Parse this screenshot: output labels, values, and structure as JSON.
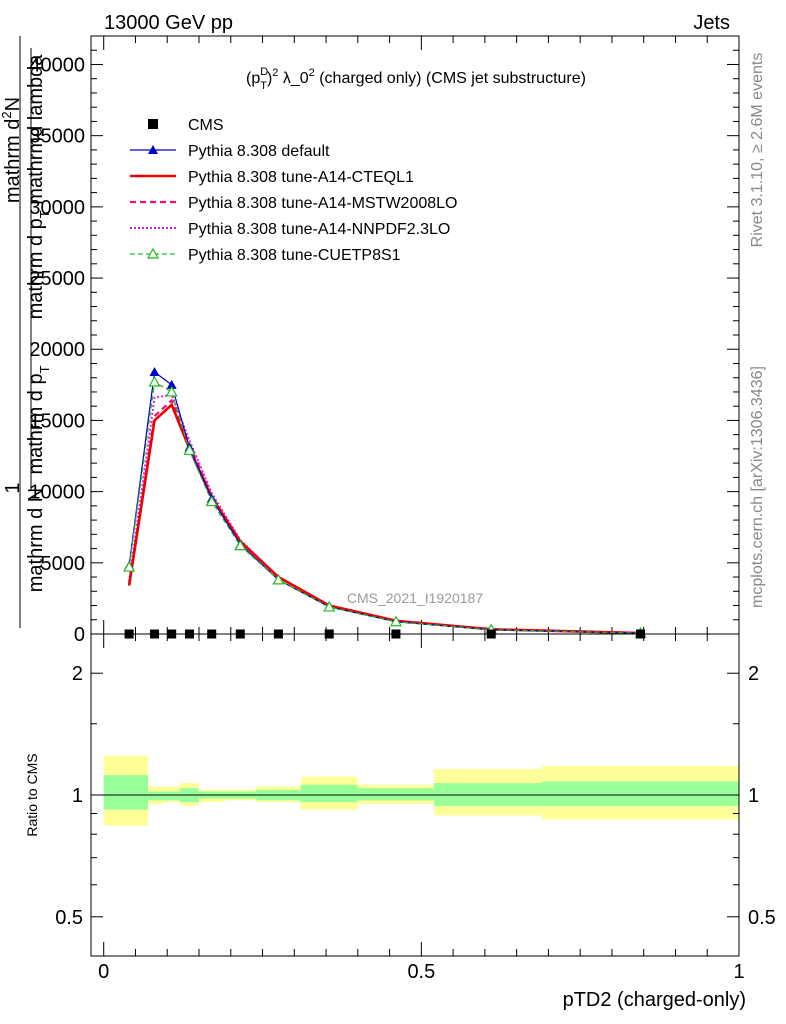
{
  "header": {
    "energy_label": "13000 GeV pp",
    "process_label": "Jets"
  },
  "side_text": {
    "rivet": "Rivet 3.1.10, ≥ 2.6M events",
    "mcplots": "mcplots.cern.ch [arXiv:1306.3436]"
  },
  "chart_data": [
    {
      "type": "line",
      "title_parts": {
        "open": "(p",
        "sup": "D",
        "sub": "T",
        "close": ")",
        "sup2": "2",
        "mid": " λ_0",
        "sup3": "2",
        "rest": " (charged only) (CMS jet substructure)"
      },
      "ylabel": {
        "line1": "mathrm d",
        "line1_sup": "2",
        "line1_end": "N",
        "line2": "mathrm d p",
        "line2_sub": "T",
        "line2_end": " mathrmd lambda",
        "frac_one": "1",
        "den_line1": "mathrm d N",
        "den_line2": "mathrm d p",
        "den_line2_sub": "T"
      },
      "ylim": [
        0,
        42000
      ],
      "xlim": [
        -0.02,
        1.0
      ],
      "y_ticks": [
        {
          "v": 0,
          "label": "0"
        },
        {
          "v": 5000,
          "label": "5000"
        },
        {
          "v": 10000,
          "label": "10000"
        },
        {
          "v": 15000,
          "label": "15000"
        },
        {
          "v": 20000,
          "label": "20000"
        },
        {
          "v": 25000,
          "label": "25000"
        },
        {
          "v": 30000,
          "label": "30000"
        },
        {
          "v": 35000,
          "label": "35000"
        },
        {
          "v": 40000,
          "label": "40000"
        }
      ],
      "watermark": "CMS_2021_I1920187",
      "legend_position": "top-left",
      "legend": [
        {
          "name": "CMS",
          "color": "#000000",
          "style": "marker-square"
        },
        {
          "name": "Pythia 8.308 default",
          "color": "#0000cc",
          "style": "line-triangle"
        },
        {
          "name": "Pythia 8.308 tune-A14-CTEQL1",
          "color": "#ee0000",
          "style": "solid-thick"
        },
        {
          "name": "Pythia 8.308 tune-A14-MSTW2008LO",
          "color": "#ee1177",
          "style": "dashed"
        },
        {
          "name": "Pythia 8.308 tune-A14-NNPDF2.3LO",
          "color": "#dd22dd",
          "style": "dotted"
        },
        {
          "name": "Pythia 8.308 tune-CUETP8S1",
          "color": "#22bb22",
          "style": "dashed-open-triangle"
        }
      ],
      "x": [
        0.04,
        0.08,
        0.107,
        0.135,
        0.17,
        0.215,
        0.275,
        0.355,
        0.46,
        0.61,
        0.845
      ],
      "cms_values": [
        0,
        0,
        0,
        0,
        0,
        0,
        0,
        0,
        0,
        0,
        0
      ],
      "series": [
        {
          "name": "Pythia 8.308 default",
          "color": "#0000cc",
          "values": [
            4800,
            18400,
            17500,
            13100,
            9500,
            6300,
            3800,
            1900,
            860,
            300,
            60
          ]
        },
        {
          "name": "Pythia 8.308 tune-A14-CTEQL1",
          "color": "#ee0000",
          "values": [
            3400,
            15000,
            16100,
            13000,
            9600,
            6500,
            4000,
            2000,
            930,
            330,
            70
          ]
        },
        {
          "name": "Pythia 8.308 tune-A14-MSTW2008LO",
          "color": "#ee1177",
          "values": [
            3500,
            15300,
            16400,
            13300,
            9700,
            6500,
            4000,
            2000,
            920,
            330,
            70
          ]
        },
        {
          "name": "Pythia 8.308 tune-A14-NNPDF2.3LO",
          "color": "#dd22dd",
          "values": [
            3700,
            16600,
            16800,
            13600,
            9900,
            6600,
            4000,
            2000,
            910,
            320,
            70
          ]
        },
        {
          "name": "Pythia 8.308 tune-CUETP8S1",
          "color": "#22bb22",
          "values": [
            4700,
            17700,
            17000,
            12900,
            9300,
            6200,
            3800,
            1900,
            860,
            300,
            60
          ]
        }
      ]
    },
    {
      "type": "area",
      "ylabel": "Ratio to CMS",
      "xlabel": "pTD2 (charged-only)",
      "scale": "log",
      "ylim": [
        0.4,
        2.5
      ],
      "xlim": [
        -0.02,
        1.0
      ],
      "y_ticks": [
        {
          "v": 0.5,
          "label": "0.5"
        },
        {
          "v": 1,
          "label": "1"
        },
        {
          "v": 2,
          "label": "2"
        }
      ],
      "x_ticks": [
        {
          "v": 0,
          "label": "0"
        },
        {
          "v": 0.5,
          "label": "0.5"
        },
        {
          "v": 1,
          "label": "1"
        }
      ],
      "reference": 1,
      "bins": [
        {
          "lo": 0.0,
          "hi": 0.07,
          "inner": [
            0.92,
            1.12
          ],
          "outer": [
            0.84,
            1.25
          ]
        },
        {
          "lo": 0.07,
          "hi": 0.095,
          "inner": [
            0.97,
            1.02
          ],
          "outer": [
            0.95,
            1.05
          ]
        },
        {
          "lo": 0.095,
          "hi": 0.12,
          "inner": [
            0.97,
            1.02
          ],
          "outer": [
            0.96,
            1.05
          ]
        },
        {
          "lo": 0.12,
          "hi": 0.15,
          "inner": [
            0.96,
            1.04
          ],
          "outer": [
            0.94,
            1.07
          ]
        },
        {
          "lo": 0.15,
          "hi": 0.19,
          "inner": [
            0.98,
            1.02
          ],
          "outer": [
            0.96,
            1.03
          ]
        },
        {
          "lo": 0.19,
          "hi": 0.24,
          "inner": [
            0.98,
            1.02
          ],
          "outer": [
            0.97,
            1.03
          ]
        },
        {
          "lo": 0.24,
          "hi": 0.31,
          "inner": [
            0.97,
            1.03
          ],
          "outer": [
            0.96,
            1.05
          ]
        },
        {
          "lo": 0.31,
          "hi": 0.4,
          "inner": [
            0.96,
            1.06
          ],
          "outer": [
            0.92,
            1.11
          ]
        },
        {
          "lo": 0.4,
          "hi": 0.52,
          "inner": [
            0.97,
            1.04
          ],
          "outer": [
            0.95,
            1.06
          ]
        },
        {
          "lo": 0.52,
          "hi": 0.69,
          "inner": [
            0.94,
            1.07
          ],
          "outer": [
            0.89,
            1.16
          ]
        },
        {
          "lo": 0.69,
          "hi": 1.0,
          "inner": [
            0.94,
            1.08
          ],
          "outer": [
            0.87,
            1.18
          ]
        }
      ],
      "colors": {
        "inner": "#99ff99",
        "outer": "#ffff99"
      }
    }
  ]
}
